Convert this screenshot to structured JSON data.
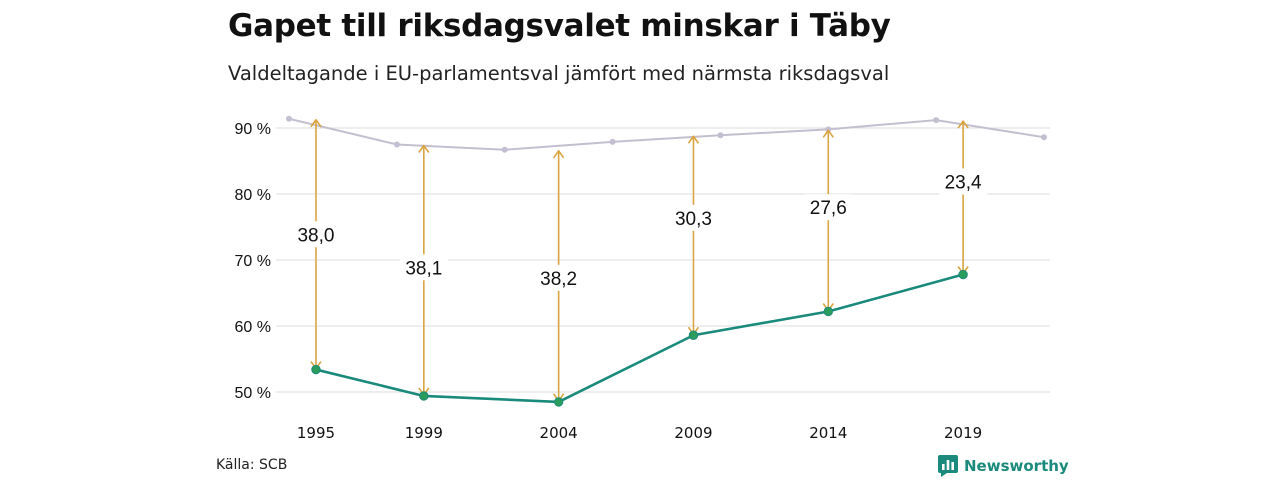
{
  "header": {
    "title": "Gapet till riksdagsvalet minskar i Täby",
    "subtitle": "Valdeltagande i EU-parlamentsval jämfört med närmsta riksdagsval"
  },
  "footer": {
    "source": "Källa: SCB",
    "brand": "Newsworthy"
  },
  "colors": {
    "eu_line": "#1a8a7c",
    "eu_marker": "#2a9d5c",
    "riksdag_line": "#c4bfd0",
    "gap_arrow": "#d9a441",
    "grid": "#dedede",
    "brand": "#1a8a7c"
  },
  "chart_data": {
    "type": "line",
    "title": "Gapet till riksdagsvalet minskar i Täby",
    "subtitle": "Valdeltagande i EU-parlamentsval jämfört med närmsta riksdagsval",
    "xlabel": "",
    "ylabel": "",
    "xlim": [
      1994.2,
      2022
    ],
    "ylim": [
      48,
      92
    ],
    "y_ticks": [
      50,
      60,
      70,
      80,
      90
    ],
    "y_tick_labels": [
      "50 %",
      "60 %",
      "70 %",
      "80 %",
      "90 %"
    ],
    "x_ticks": [
      1995,
      1999,
      2004,
      2009,
      2014,
      2019
    ],
    "x_tick_labels": [
      "1995",
      "1999",
      "2004",
      "2009",
      "2014",
      "2019"
    ],
    "grid": true,
    "series": [
      {
        "key": "riksdag",
        "x": [
          1994,
          1998,
          2002,
          2006,
          2010,
          2014,
          2018,
          2022
        ],
        "values": [
          91.4,
          87.5,
          86.7,
          87.9,
          88.9,
          89.8,
          91.2,
          88.6
        ]
      },
      {
        "key": "eu",
        "x": [
          1995,
          1999,
          2004,
          2009,
          2014,
          2019
        ],
        "values": [
          53.4,
          49.4,
          48.5,
          58.6,
          62.2,
          67.8
        ]
      }
    ],
    "gaps": [
      {
        "x": 1995,
        "from": 53.4,
        "to": 91.4,
        "label": "38,0",
        "label_y": 73.9
      },
      {
        "x": 1999,
        "from": 49.4,
        "to": 87.5,
        "label": "38,1",
        "label_y": 68.9
      },
      {
        "x": 2004,
        "from": 48.5,
        "to": 86.7,
        "label": "38,2",
        "label_y": 67.3
      },
      {
        "x": 2009,
        "from": 58.6,
        "to": 88.9,
        "label": "30,3",
        "label_y": 76.4
      },
      {
        "x": 2014,
        "from": 62.2,
        "to": 89.8,
        "label": "27,6",
        "label_y": 78.0
      },
      {
        "x": 2019,
        "from": 67.8,
        "to": 91.2,
        "label": "23,4",
        "label_y": 81.9
      }
    ]
  }
}
